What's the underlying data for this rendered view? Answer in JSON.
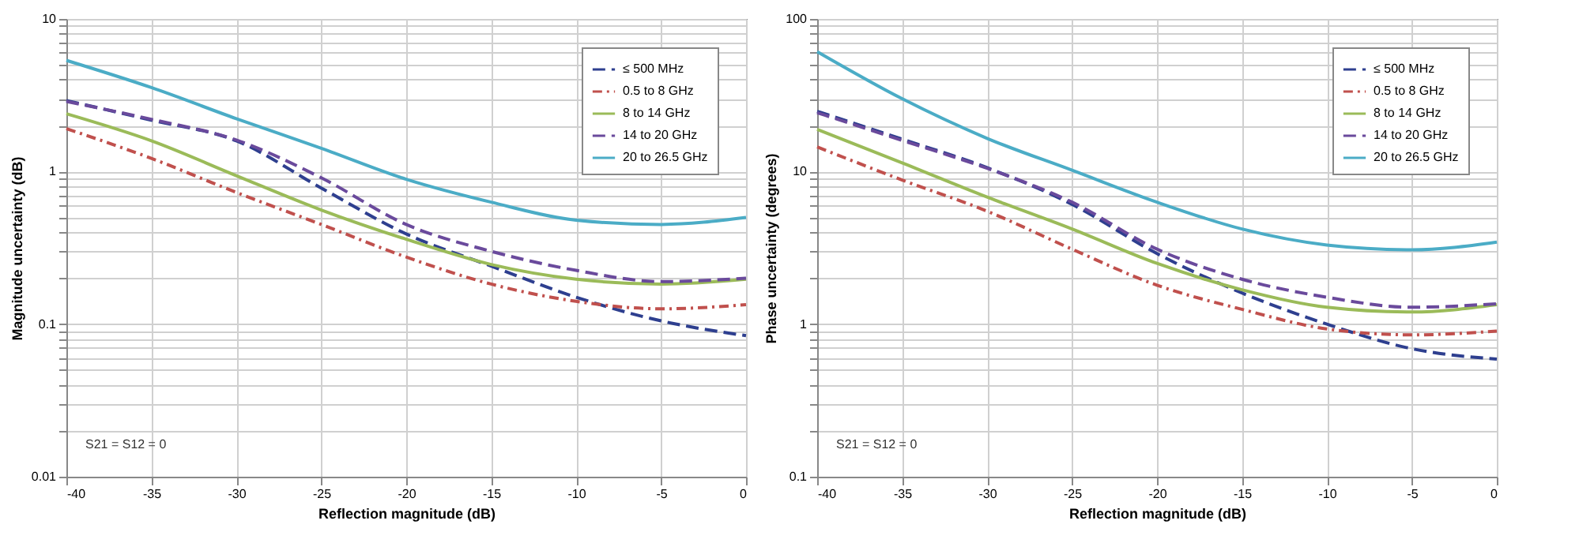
{
  "chart_data": [
    {
      "type": "line",
      "xlabel": "Reflection magnitude (dB)",
      "ylabel": "Magnitude uncertainty (dB)",
      "annotations": [
        "S21 = S12 = 0"
      ],
      "log": "y",
      "grid": true,
      "legend": "top right",
      "x": [
        -40,
        -35,
        -30,
        -25,
        -20,
        -15,
        -10,
        -5,
        0
      ],
      "xlim": [
        -40,
        0
      ],
      "xticks": [
        -40,
        -35,
        -30,
        -25,
        -20,
        -15,
        -10,
        -5,
        0
      ],
      "ylim": [
        0.01,
        10
      ],
      "yticks": [
        {
          "value": 0.01,
          "label": "0.01"
        },
        {
          "value": 0.02,
          "label": null
        },
        {
          "value": 0.03,
          "label": null
        },
        {
          "value": 0.04,
          "label": null
        },
        {
          "value": 0.05,
          "label": null
        },
        {
          "value": 0.06,
          "label": null
        },
        {
          "value": 0.07,
          "label": null
        },
        {
          "value": 0.08,
          "label": null
        },
        {
          "value": 0.09,
          "label": null
        },
        {
          "value": 0.1,
          "label": "0.1"
        },
        {
          "value": 0.2,
          "label": null
        },
        {
          "value": 0.3,
          "label": null
        },
        {
          "value": 0.4,
          "label": null
        },
        {
          "value": 0.5,
          "label": null
        },
        {
          "value": 0.6,
          "label": null
        },
        {
          "value": 0.7,
          "label": null
        },
        {
          "value": 0.8,
          "label": null
        },
        {
          "value": 0.9,
          "label": null
        },
        {
          "value": 1,
          "label": "1"
        },
        {
          "value": 2,
          "label": null
        },
        {
          "value": 3,
          "label": null
        },
        {
          "value": 4,
          "label": null
        },
        {
          "value": 5,
          "label": null
        },
        {
          "value": 6,
          "label": null
        },
        {
          "value": 7,
          "label": null
        },
        {
          "value": 8,
          "label": null
        },
        {
          "value": 9,
          "label": null
        },
        {
          "value": 10,
          "label": "10"
        }
      ],
      "series": [
        {
          "name": "≤ 500 MHz",
          "color": "#2e3f8f",
          "line_style": "dashed",
          "values": [
            2.92,
            2.17,
            1.59,
            0.78,
            0.39,
            0.24,
            0.15,
            0.105,
            0.084
          ]
        },
        {
          "name": "0.5 to 8 GHz",
          "color": "#c0504d",
          "line_style": "dotted",
          "values": [
            1.91,
            1.22,
            0.73,
            0.45,
            0.275,
            0.183,
            0.141,
            0.126,
            0.134
          ]
        },
        {
          "name": "8 to 14 GHz",
          "color": "#9bbb59",
          "line_style": "solid",
          "values": [
            2.39,
            1.59,
            0.94,
            0.56,
            0.36,
            0.246,
            0.197,
            0.183,
            0.197
          ]
        },
        {
          "name": "14 to 20 GHz",
          "color": "#6a4a9c",
          "line_style": "dashed",
          "values": [
            2.88,
            2.2,
            1.61,
            0.91,
            0.45,
            0.3,
            0.225,
            0.19,
            0.2
          ]
        },
        {
          "name": "20 to 26.5 GHz",
          "color": "#4bacc6",
          "line_style": "solid",
          "values": [
            5.35,
            3.55,
            2.22,
            1.42,
            0.89,
            0.63,
            0.48,
            0.45,
            0.5
          ]
        }
      ]
    },
    {
      "type": "line",
      "xlabel": "Reflection magnitude (dB)",
      "ylabel": "Phase uncertainty (degrees)",
      "annotations": [
        "S21 = S12 = 0"
      ],
      "log": "y",
      "grid": true,
      "legend": "top right",
      "x": [
        -40,
        -35,
        -30,
        -25,
        -20,
        -15,
        -10,
        -5,
        0
      ],
      "xlim": [
        -40,
        0
      ],
      "xticks": [
        -40,
        -35,
        -30,
        -25,
        -20,
        -15,
        -10,
        -5,
        0
      ],
      "ylim": [
        0.1,
        100
      ],
      "yticks": [
        {
          "value": 0.1,
          "label": "0.1"
        },
        {
          "value": 0.2,
          "label": null
        },
        {
          "value": 0.3,
          "label": null
        },
        {
          "value": 0.4,
          "label": null
        },
        {
          "value": 0.5,
          "label": null
        },
        {
          "value": 0.6,
          "label": null
        },
        {
          "value": 0.7,
          "label": null
        },
        {
          "value": 0.8,
          "label": null
        },
        {
          "value": 0.9,
          "label": null
        },
        {
          "value": 1,
          "label": "1"
        },
        {
          "value": 2,
          "label": null
        },
        {
          "value": 3,
          "label": null
        },
        {
          "value": 4,
          "label": null
        },
        {
          "value": 5,
          "label": null
        },
        {
          "value": 6,
          "label": null
        },
        {
          "value": 7,
          "label": null
        },
        {
          "value": 8,
          "label": null
        },
        {
          "value": 9,
          "label": null
        },
        {
          "value": 10,
          "label": "10"
        },
        {
          "value": 20,
          "label": null
        },
        {
          "value": 30,
          "label": null
        },
        {
          "value": 40,
          "label": null
        },
        {
          "value": 50,
          "label": null
        },
        {
          "value": 60,
          "label": null
        },
        {
          "value": 70,
          "label": null
        },
        {
          "value": 80,
          "label": null
        },
        {
          "value": 90,
          "label": null
        },
        {
          "value": 100,
          "label": "100"
        }
      ],
      "series": [
        {
          "name": "≤ 500 MHz",
          "color": "#2e3f8f",
          "line_style": "dashed",
          "values": [
            24.8,
            16.3,
            10.6,
            6.1,
            2.9,
            1.6,
            1.0,
            0.69,
            0.59
          ]
        },
        {
          "name": "0.5 to 8 GHz",
          "color": "#c0504d",
          "line_style": "dotted",
          "values": [
            14.5,
            8.8,
            5.5,
            3.1,
            1.8,
            1.25,
            0.93,
            0.85,
            0.9
          ]
        },
        {
          "name": "8 to 14 GHz",
          "color": "#9bbb59",
          "line_style": "solid",
          "values": [
            18.9,
            11.4,
            6.8,
            4.2,
            2.5,
            1.68,
            1.29,
            1.2,
            1.34
          ]
        },
        {
          "name": "14 to 20 GHz",
          "color": "#6a4a9c",
          "line_style": "dashed",
          "values": [
            24.3,
            16.0,
            10.5,
            6.3,
            3.1,
            1.97,
            1.5,
            1.29,
            1.36
          ]
        },
        {
          "name": "20 to 26.5 GHz",
          "color": "#4bacc6",
          "line_style": "solid",
          "values": [
            61,
            30,
            16.5,
            10.2,
            6.3,
            4.2,
            3.3,
            3.07,
            3.45
          ]
        }
      ]
    }
  ]
}
